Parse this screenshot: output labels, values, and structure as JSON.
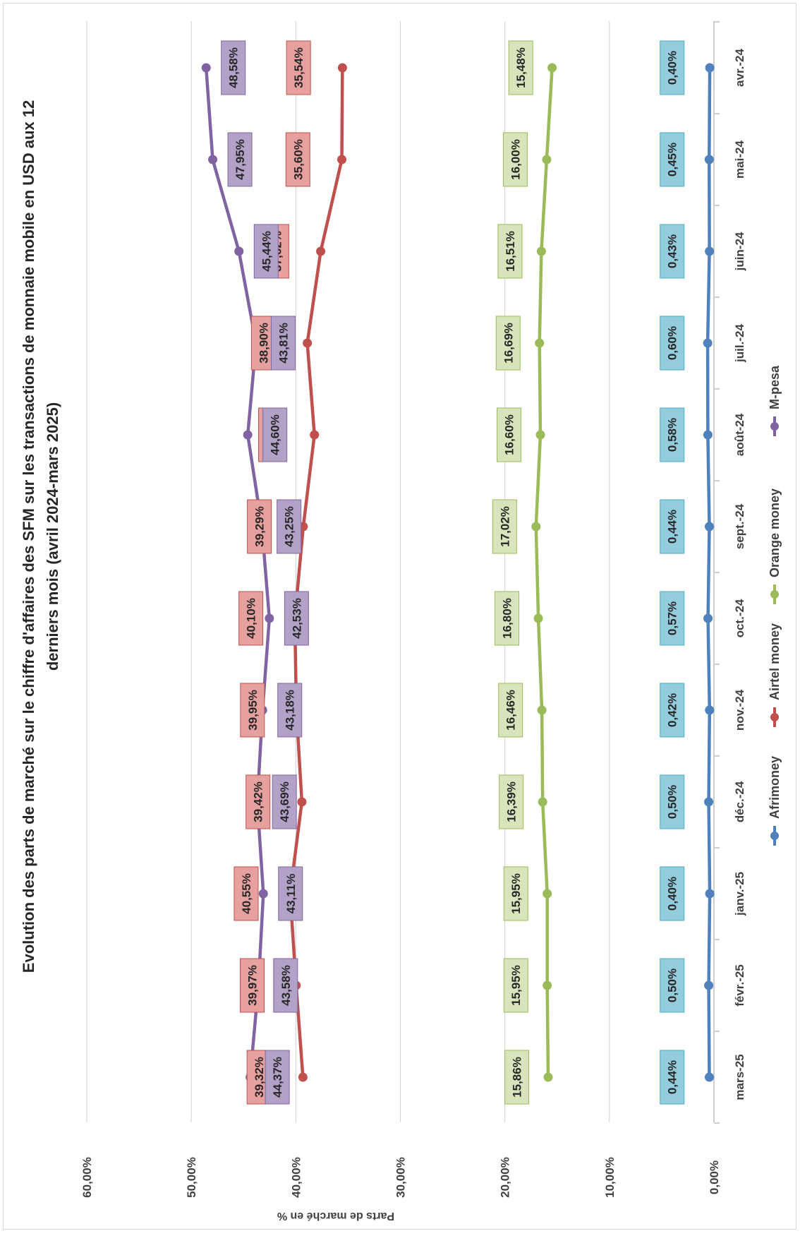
{
  "chart_data": {
    "type": "line",
    "title": "Evolution des parts de marché sur le chiffre d'affaires des SFM sur les transactions de monnaie mobile en USD  aux 12 derniers mois (avril 2024-mars 2025)",
    "title_lines": [
      "Evolution des parts de marché sur le chiffre d'affaires des SFM sur les transactions de monnaie mobile en USD  aux 12",
      "derniers mois (avril 2024-mars 2025)"
    ],
    "xlabel": "",
    "ylabel": "Parts de marché en %",
    "ylim": [
      0,
      60
    ],
    "y_ticks": [
      "0,00%",
      "10,00%",
      "20,00%",
      "30,00%",
      "40,00%",
      "50,00%",
      "60,00%"
    ],
    "grid": true,
    "legend_position": "bottom",
    "orientation": "page rotated 90 degrees counter-clockwise",
    "categories": [
      "avr.-24",
      "mai-24",
      "juin-24",
      "juil.-24",
      "août-24",
      "sept.-24",
      "oct.-24",
      "nov.-24",
      "déc.-24",
      "janv.-25",
      "févr.-25",
      "mars-25"
    ],
    "series": [
      {
        "name": "Afrimoney",
        "color": "#4f81bd",
        "label_fill": "#93cddd",
        "label_border": "#4bacc6",
        "values": [
          0.4,
          0.45,
          0.43,
          0.6,
          0.58,
          0.44,
          0.57,
          0.42,
          0.5,
          0.4,
          0.5,
          0.44
        ],
        "labels": [
          "0,40%",
          "0,45%",
          "0,43%",
          "0,60%",
          "0,58%",
          "0,44%",
          "0,57%",
          "0,42%",
          "0,50%",
          "0,40%",
          "0,50%",
          "0,44%"
        ]
      },
      {
        "name": "Airtel money",
        "color": "#c0504d",
        "label_fill": "#e6a19f",
        "label_border": "#c0504d",
        "values": [
          35.54,
          35.6,
          37.62,
          38.9,
          38.22,
          39.29,
          40.1,
          39.95,
          39.42,
          40.55,
          39.97,
          39.32
        ],
        "labels": [
          "35,54%",
          "35,60%",
          "37,62%",
          "38,90%",
          "38,22%",
          "39,29%",
          "40,10%",
          "39,95%",
          "39,42%",
          "40,55%",
          "39,97%",
          "39,32%"
        ]
      },
      {
        "name": "Orange money",
        "color": "#9bbb59",
        "label_fill": "#d7e4bc",
        "label_border": "#9bbb59",
        "values": [
          15.48,
          16.0,
          16.51,
          16.69,
          16.6,
          17.02,
          16.8,
          16.46,
          16.39,
          15.95,
          15.95,
          15.86
        ],
        "labels": [
          "15,48%",
          "16,00%",
          "16,51%",
          "16,69%",
          "16,60%",
          "17,02%",
          "16,80%",
          "16,46%",
          "16,39%",
          "15,95%",
          "15,95%",
          "15,86%"
        ]
      },
      {
        "name": "M-pesa",
        "color": "#8064a2",
        "label_fill": "#b3a2c7",
        "label_border": "#8064a2",
        "values": [
          48.58,
          47.95,
          45.44,
          43.81,
          44.6,
          43.25,
          42.53,
          43.18,
          43.69,
          43.11,
          43.58,
          44.37
        ],
        "labels": [
          "48,58%",
          "47,95%",
          "45,44%",
          "43,81%",
          "44,60%",
          "43,25%",
          "42,53%",
          "43,18%",
          "43,69%",
          "43,11%",
          "43,58%",
          "44,37%"
        ]
      }
    ]
  }
}
